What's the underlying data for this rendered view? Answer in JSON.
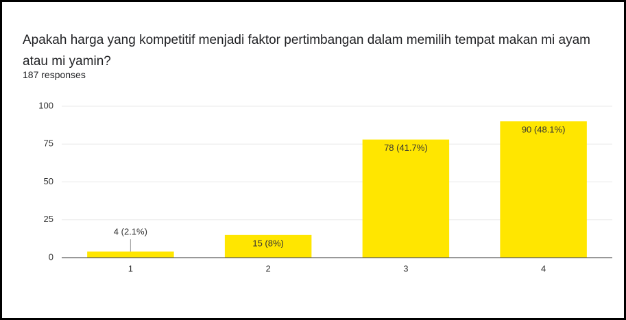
{
  "chart_data": {
    "type": "bar",
    "title": "Apakah harga yang kompetitif menjadi faktor pertimbangan dalam memilih tempat makan mi ayam atau mi yamin?",
    "subtitle": "187 responses",
    "categories": [
      "1",
      "2",
      "3",
      "4"
    ],
    "values": [
      4,
      15,
      78,
      90
    ],
    "value_labels": [
      "4 (2.1%)",
      "15 (8%)",
      "78 (41.7%)",
      "90 (48.1%)"
    ],
    "color": "#ffe600",
    "ylim": [
      0,
      100
    ],
    "yticks": [
      0,
      25,
      50,
      75,
      100
    ],
    "grid": true
  }
}
